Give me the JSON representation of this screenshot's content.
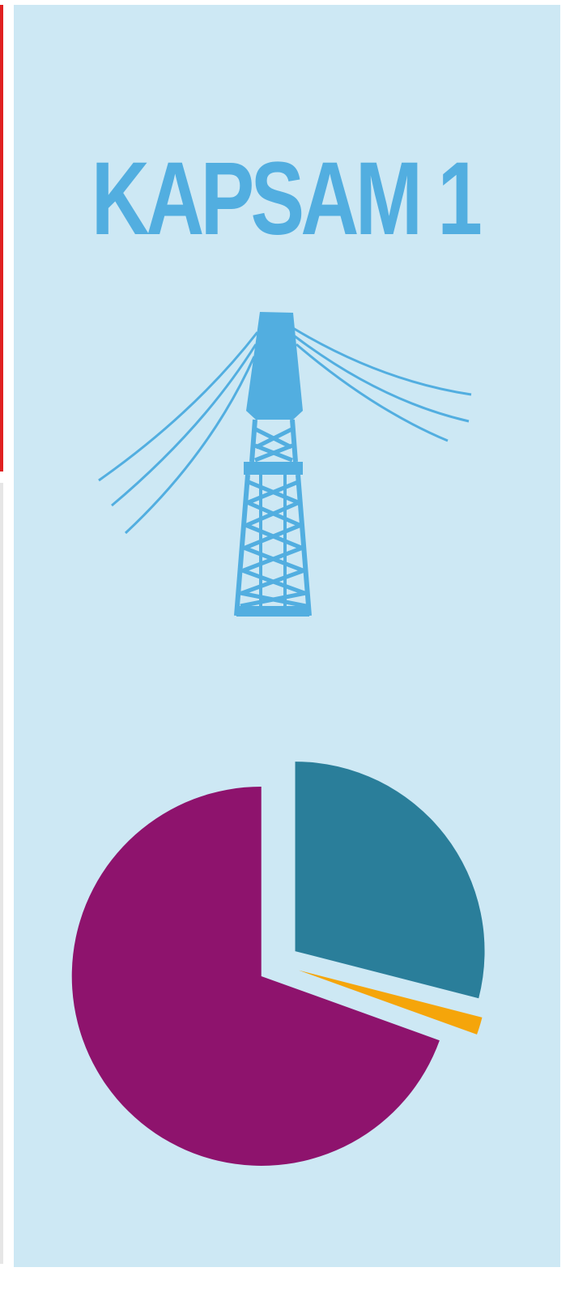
{
  "chart_data": {
    "type": "pie",
    "title": "KAPSAM 1",
    "values": [
      29,
      1.5,
      69.5
    ],
    "colors": [
      "#2a7e9a",
      "#f5a50a",
      "#8e136d"
    ]
  }
}
